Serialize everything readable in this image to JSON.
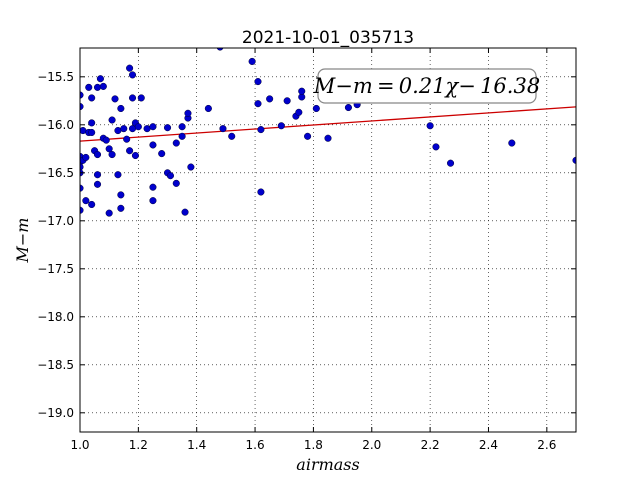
{
  "chart_data": {
    "type": "scatter",
    "title": "2021-10-01_035713",
    "xlabel": "airmass",
    "ylabel": "M−m",
    "xlim": [
      1.0,
      2.7
    ],
    "ylim": [
      -19.2,
      -15.2
    ],
    "y_inverted": true,
    "grid": true,
    "grid_style": "dotted",
    "xticks": [
      1.0,
      1.2,
      1.4,
      1.6,
      1.8,
      2.0,
      2.2,
      2.4,
      2.6
    ],
    "xtick_labels": [
      "1.0",
      "1.2",
      "1.4",
      "1.6",
      "1.8",
      "2.0",
      "2.2",
      "2.4",
      "2.6"
    ],
    "yticks": [
      -15.5,
      -16.0,
      -16.5,
      -17.0,
      -17.5,
      -18.0,
      -18.5,
      -19.0
    ],
    "ytick_labels": [
      "−15.5",
      "−16.0",
      "−16.5",
      "−17.0",
      "−17.5",
      "−18.0",
      "−18.5",
      "−19.0"
    ],
    "annotation": "M−m = 0.21χ− 16.38",
    "fit": {
      "slope": 0.21,
      "intercept": -16.38,
      "color": "#cc0000"
    },
    "point_color": "#0000cc",
    "points": [
      [
        1.0,
        -15.69
      ],
      [
        1.0,
        -15.81
      ],
      [
        1.0,
        -16.33
      ],
      [
        1.0,
        -16.39
      ],
      [
        1.0,
        -16.44
      ],
      [
        1.0,
        -16.5
      ],
      [
        1.0,
        -16.66
      ],
      [
        1.0,
        -16.89
      ],
      [
        1.01,
        -16.06
      ],
      [
        1.01,
        -16.37
      ],
      [
        1.02,
        -16.34
      ],
      [
        1.02,
        -16.79
      ],
      [
        1.03,
        -15.61
      ],
      [
        1.03,
        -16.08
      ],
      [
        1.04,
        -16.08
      ],
      [
        1.04,
        -15.98
      ],
      [
        1.04,
        -15.72
      ],
      [
        1.04,
        -16.83
      ],
      [
        1.05,
        -16.27
      ],
      [
        1.06,
        -16.31
      ],
      [
        1.06,
        -16.52
      ],
      [
        1.06,
        -16.62
      ],
      [
        1.06,
        -15.61
      ],
      [
        1.07,
        -15.52
      ],
      [
        1.08,
        -16.14
      ],
      [
        1.08,
        -15.6
      ],
      [
        1.09,
        -16.16
      ],
      [
        1.1,
        -16.92
      ],
      [
        1.1,
        -16.25
      ],
      [
        1.11,
        -16.31
      ],
      [
        1.11,
        -15.95
      ],
      [
        1.12,
        -15.73
      ],
      [
        1.13,
        -16.52
      ],
      [
        1.13,
        -16.06
      ],
      [
        1.14,
        -16.87
      ],
      [
        1.14,
        -16.73
      ],
      [
        1.14,
        -15.83
      ],
      [
        1.15,
        -16.04
      ],
      [
        1.16,
        -16.15
      ],
      [
        1.17,
        -16.27
      ],
      [
        1.17,
        -15.41
      ],
      [
        1.18,
        -15.48
      ],
      [
        1.18,
        -16.04
      ],
      [
        1.18,
        -15.72
      ],
      [
        1.19,
        -16.32
      ],
      [
        1.19,
        -15.98
      ],
      [
        1.2,
        -16.02
      ],
      [
        1.21,
        -15.72
      ],
      [
        1.23,
        -16.04
      ],
      [
        1.25,
        -16.02
      ],
      [
        1.25,
        -16.21
      ],
      [
        1.25,
        -16.65
      ],
      [
        1.25,
        -16.79
      ],
      [
        1.28,
        -16.3
      ],
      [
        1.3,
        -16.03
      ],
      [
        1.3,
        -16.5
      ],
      [
        1.31,
        -16.53
      ],
      [
        1.33,
        -16.19
      ],
      [
        1.33,
        -16.61
      ],
      [
        1.35,
        -16.02
      ],
      [
        1.35,
        -16.12
      ],
      [
        1.36,
        -16.91
      ],
      [
        1.37,
        -15.93
      ],
      [
        1.37,
        -15.88
      ],
      [
        1.38,
        -16.44
      ],
      [
        1.44,
        -15.83
      ],
      [
        1.48,
        -15.19
      ],
      [
        1.49,
        -16.04
      ],
      [
        1.52,
        -16.12
      ],
      [
        1.59,
        -15.34
      ],
      [
        1.61,
        -15.78
      ],
      [
        1.61,
        -15.55
      ],
      [
        1.62,
        -16.05
      ],
      [
        1.62,
        -16.7
      ],
      [
        1.65,
        -15.73
      ],
      [
        1.69,
        -16.01
      ],
      [
        1.71,
        -15.75
      ],
      [
        1.74,
        -15.91
      ],
      [
        1.75,
        -15.87
      ],
      [
        1.76,
        -15.71
      ],
      [
        1.76,
        -15.65
      ],
      [
        1.78,
        -16.12
      ],
      [
        1.81,
        -15.83
      ],
      [
        1.85,
        -16.14
      ],
      [
        1.92,
        -15.82
      ],
      [
        1.95,
        -15.79
      ],
      [
        2.2,
        -16.01
      ],
      [
        2.22,
        -16.23
      ],
      [
        2.27,
        -16.4
      ],
      [
        2.48,
        -16.19
      ],
      [
        2.7,
        -16.37
      ]
    ]
  }
}
